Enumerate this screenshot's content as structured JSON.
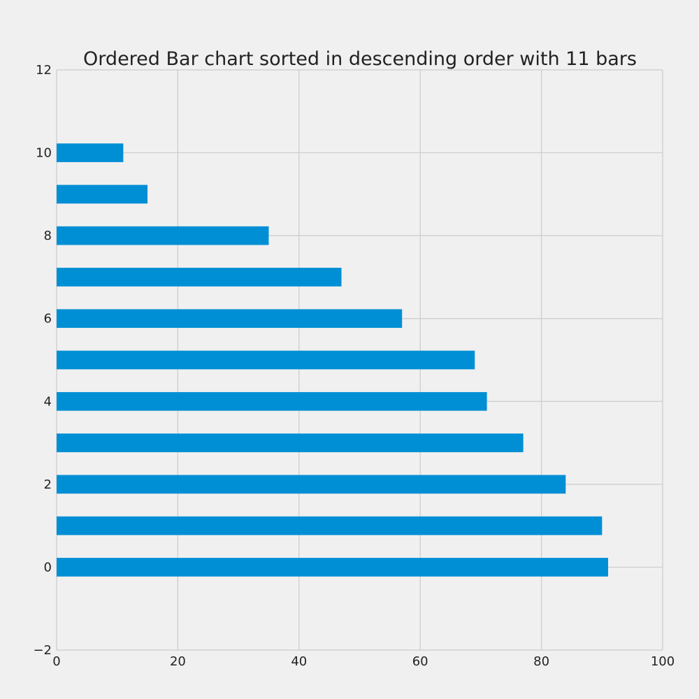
{
  "chart_data": {
    "type": "bar",
    "orientation": "horizontal",
    "title": "Ordered Bar chart sorted in descending order with 11 bars",
    "xlabel": "",
    "ylabel": "",
    "categories": [
      0,
      1,
      2,
      3,
      4,
      5,
      6,
      7,
      8,
      9,
      10
    ],
    "values": [
      91,
      90,
      84,
      77,
      71,
      69,
      57,
      47,
      35,
      15,
      11
    ],
    "bar_color": "#008fd5",
    "xlim": [
      0,
      100
    ],
    "ylim": [
      -2,
      12
    ],
    "xticks": [
      0,
      20,
      40,
      60,
      80,
      100
    ],
    "xtick_labels": [
      "0",
      "20",
      "40",
      "60",
      "80",
      "100"
    ],
    "yticks": [
      -2,
      0,
      2,
      4,
      6,
      8,
      10,
      12
    ],
    "ytick_labels": [
      "−2",
      "0",
      "2",
      "4",
      "6",
      "8",
      "10",
      "12"
    ],
    "grid": true,
    "background": "#f0f0f0"
  }
}
